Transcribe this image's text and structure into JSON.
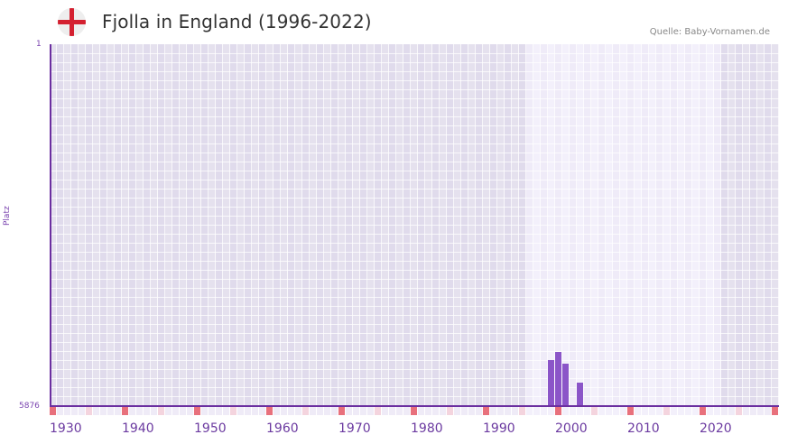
{
  "header": {
    "flag_icon": "england-flag",
    "title": "Fjolla in England (1996-2022)",
    "source": "Quelle: Baby-Vornamen.de"
  },
  "colors": {
    "bar": "#8b55c8",
    "axis": "#6b2fa0",
    "grid_dark": "#e2dced",
    "grid_light": "#efebf8",
    "decade_marker": "#e8707c",
    "half_decade_marker": "#f4d4de"
  },
  "chart_data": {
    "type": "bar",
    "title": "Fjolla in England (1996-2022)",
    "xlabel": "",
    "ylabel": "Platz",
    "y_inverted": true,
    "ylim": [
      1,
      5876
    ],
    "xlim": [
      1930,
      2030
    ],
    "data_range": [
      1996,
      2022
    ],
    "x_ticks": [
      "1930",
      "1940",
      "1950",
      "1960",
      "1970",
      "1980",
      "1990",
      "2000",
      "2010",
      "2020"
    ],
    "y_ticks": [
      "1",
      "5876"
    ],
    "grid": true,
    "legend": null,
    "x": [
      1999,
      2000,
      2001,
      2003
    ],
    "values": [
      5130,
      4995,
      5185,
      5495
    ]
  },
  "axes": {
    "y_top": "1",
    "y_bottom": "5876",
    "y_title": "Platz",
    "x_ticks": [
      "1930",
      "1940",
      "1950",
      "1960",
      "1970",
      "1980",
      "1990",
      "2000",
      "2010",
      "2020"
    ]
  }
}
